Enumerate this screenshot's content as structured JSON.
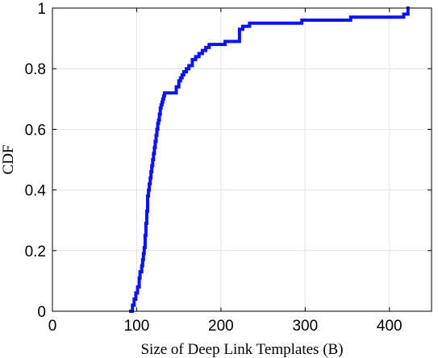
{
  "chart_data": {
    "type": "line",
    "title": "",
    "xlabel": "Size of Deep Link Templates (B)",
    "ylabel": "CDF",
    "xlim": [
      0,
      450
    ],
    "ylim": [
      0,
      1
    ],
    "grid": true,
    "x_ticks": [
      {
        "value": 0,
        "label": "0"
      },
      {
        "value": 100,
        "label": "100"
      },
      {
        "value": 200,
        "label": "200"
      },
      {
        "value": 300,
        "label": "300"
      },
      {
        "value": 400,
        "label": "400"
      }
    ],
    "y_ticks": [
      {
        "value": 0,
        "label": "0"
      },
      {
        "value": 0.2,
        "label": "0.2"
      },
      {
        "value": 0.4,
        "label": "0.4"
      },
      {
        "value": 0.6,
        "label": "0.6"
      },
      {
        "value": 0.8,
        "label": "0.8"
      },
      {
        "value": 1,
        "label": "1"
      }
    ],
    "series": [
      {
        "color": "#0a14f0",
        "step": true,
        "x": [
          93,
          95,
          97,
          99,
          101,
          103,
          104,
          106,
          107,
          108,
          109,
          110,
          111,
          112,
          113,
          114,
          115,
          116,
          117,
          118,
          119,
          120,
          121,
          122,
          123,
          124,
          125,
          126,
          127,
          128,
          129,
          130,
          131,
          132,
          133,
          135,
          137,
          140,
          147,
          150,
          152,
          154,
          156,
          159,
          162,
          166,
          170,
          174,
          178,
          182,
          186,
          190,
          205,
          215,
          222,
          226,
          230,
          234,
          296,
          354,
          417,
          422
        ],
        "y": [
          0.0,
          0.02,
          0.04,
          0.06,
          0.08,
          0.11,
          0.13,
          0.15,
          0.17,
          0.19,
          0.21,
          0.25,
          0.29,
          0.33,
          0.38,
          0.4,
          0.42,
          0.44,
          0.46,
          0.48,
          0.5,
          0.52,
          0.54,
          0.56,
          0.58,
          0.6,
          0.62,
          0.63,
          0.65,
          0.67,
          0.68,
          0.69,
          0.7,
          0.71,
          0.72,
          0.72,
          0.72,
          0.72,
          0.74,
          0.76,
          0.77,
          0.78,
          0.79,
          0.8,
          0.81,
          0.83,
          0.84,
          0.85,
          0.86,
          0.87,
          0.88,
          0.88,
          0.89,
          0.89,
          0.93,
          0.94,
          0.94,
          0.95,
          0.96,
          0.97,
          0.98,
          1.0
        ]
      }
    ]
  }
}
